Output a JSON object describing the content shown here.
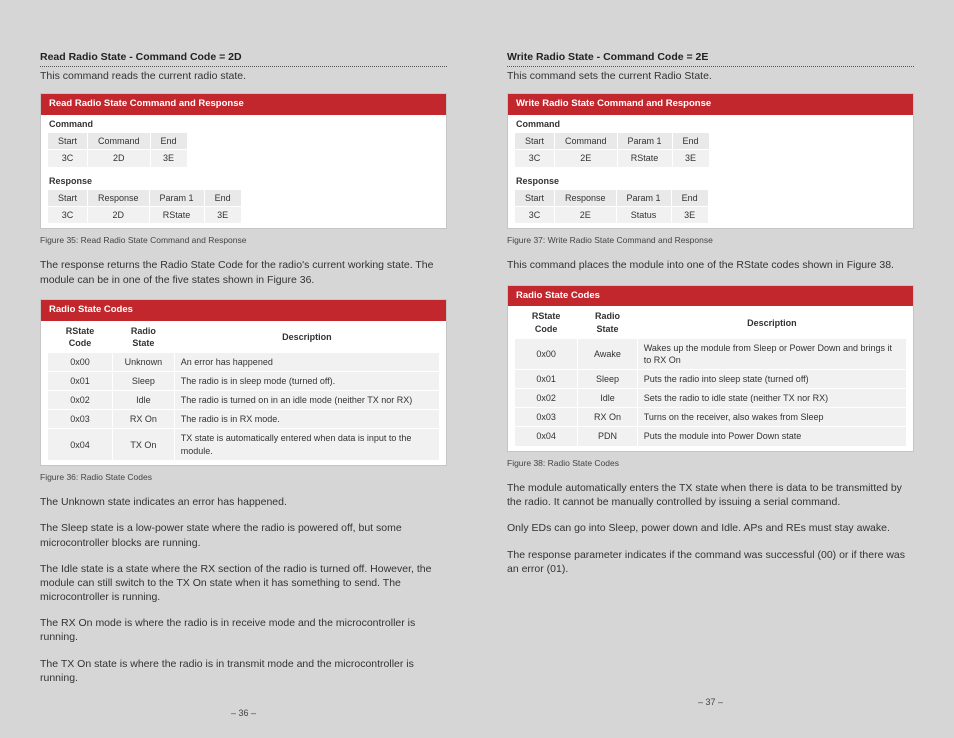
{
  "left": {
    "title": "Read Radio State - Command Code = 2D",
    "lead": "This command reads the current radio state.",
    "t1": {
      "header": "Read Radio State Command and Response",
      "cmd_label": "Command",
      "cmd_cols": [
        "Start",
        "Command",
        "End"
      ],
      "cmd_row": [
        "3C",
        "2D",
        "3E"
      ],
      "rsp_label": "Response",
      "rsp_cols": [
        "Start",
        "Response",
        "Param 1",
        "End"
      ],
      "rsp_row": [
        "3C",
        "2D",
        "RState",
        "3E"
      ]
    },
    "t1_cap": "Figure 35: Read Radio State Command and Response",
    "para1": "The response returns the Radio State Code for the radio's current working state. The module can be in one of the five states shown in Figure 36.",
    "t2": {
      "header": "Radio State Codes",
      "cols": [
        "RState Code",
        "Radio State",
        "Description"
      ],
      "rows": [
        [
          "0x00",
          "Unknown",
          "An error has happened"
        ],
        [
          "0x01",
          "Sleep",
          "The radio is in sleep mode (turned off)."
        ],
        [
          "0x02",
          "Idle",
          "The radio is turned on in an idle mode (neither TX nor RX)"
        ],
        [
          "0x03",
          "RX On",
          "The radio is in RX mode."
        ],
        [
          "0x04",
          "TX On",
          "TX state is automatically entered when data is input to the module."
        ]
      ]
    },
    "t2_cap": "Figure 36: Radio State Codes",
    "p2": "The Unknown state indicates an error has happened.",
    "p3": "The Sleep state is a low-power state where the radio is powered off, but some microcontroller blocks are running.",
    "p4": "The Idle state is a state where the RX section of the radio is turned off. However, the module can still switch to the TX On state when it has something to send. The microcontroller is running.",
    "p5": "The RX On mode is where the radio is in receive mode and the microcontroller is running.",
    "p6": "The TX On state is where the radio is in transmit mode and the microcontroller is running.",
    "pageno": "– 36 –"
  },
  "right": {
    "title": "Write Radio State - Command Code = 2E",
    "lead": "This command sets the current Radio State.",
    "t1": {
      "header": "Write Radio State Command and Response",
      "cmd_label": "Command",
      "cmd_cols": [
        "Start",
        "Command",
        "Param 1",
        "End"
      ],
      "cmd_row": [
        "3C",
        "2E",
        "RState",
        "3E"
      ],
      "rsp_label": "Response",
      "rsp_cols": [
        "Start",
        "Response",
        "Param 1",
        "End"
      ],
      "rsp_row": [
        "3C",
        "2E",
        "Status",
        "3E"
      ]
    },
    "t1_cap": "Figure 37: Write Radio State Command and Response",
    "para1": "This command places the module into one of the RState codes shown in Figure 38.",
    "t2": {
      "header": "Radio State Codes",
      "cols": [
        "RState Code",
        "Radio State",
        "Description"
      ],
      "rows": [
        [
          "0x00",
          "Awake",
          "Wakes up the module from Sleep or Power Down and brings it to RX On"
        ],
        [
          "0x01",
          "Sleep",
          "Puts the radio into sleep state (turned off)"
        ],
        [
          "0x02",
          "Idle",
          "Sets the radio to idle state (neither TX nor RX)"
        ],
        [
          "0x03",
          "RX On",
          "Turns on the receiver, also wakes from Sleep"
        ],
        [
          "0x04",
          "PDN",
          "Puts the module into Power Down state"
        ]
      ]
    },
    "t2_cap": "Figure 38: Radio State Codes",
    "p2": "The module automatically enters the TX state when there is data to be transmitted by the radio. It cannot be manually controlled by issuing a serial command.",
    "p3": "Only EDs can go into Sleep, power down and Idle. APs and REs must stay awake.",
    "p4": "The response parameter indicates if the command was successful (00) or if there was an error (01).",
    "pageno": "– 37 –"
  },
  "colors": {
    "accent": "#c1272d",
    "bg": "#d6d6d6"
  }
}
